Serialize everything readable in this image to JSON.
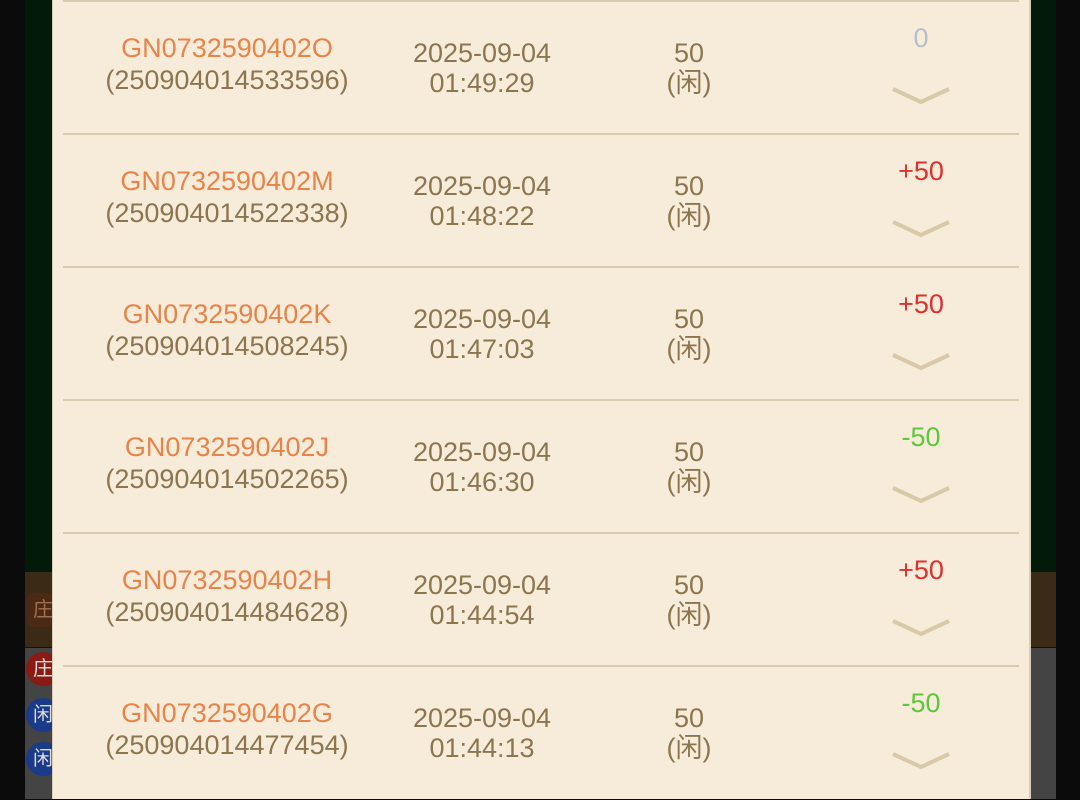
{
  "background": {
    "badges": [
      "庄",
      "庄",
      "闲",
      "闲"
    ]
  },
  "records": [
    {
      "code": "GN0732590402O",
      "serial": "(250904014533596)",
      "date": "2025-09-04",
      "time": "01:49:29",
      "amount": "50",
      "side": "(闲)",
      "result": "0",
      "result_color": "#b4c0cc"
    },
    {
      "code": "GN0732590402M",
      "serial": "(250904014522338)",
      "date": "2025-09-04",
      "time": "01:48:22",
      "amount": "50",
      "side": "(闲)",
      "result": "+50",
      "result_color": "#e0302e"
    },
    {
      "code": "GN0732590402K",
      "serial": "(250904014508245)",
      "date": "2025-09-04",
      "time": "01:47:03",
      "amount": "50",
      "side": "(闲)",
      "result": "+50",
      "result_color": "#e0302e"
    },
    {
      "code": "GN0732590402J",
      "serial": "(250904014502265)",
      "date": "2025-09-04",
      "time": "01:46:30",
      "amount": "50",
      "side": "(闲)",
      "result": "-50",
      "result_color": "#5cc83a"
    },
    {
      "code": "GN0732590402H",
      "serial": "(250904014484628)",
      "date": "2025-09-04",
      "time": "01:44:54",
      "amount": "50",
      "side": "(闲)",
      "result": "+50",
      "result_color": "#e0302e"
    },
    {
      "code": "GN0732590402G",
      "serial": "(250904014477454)",
      "date": "2025-09-04",
      "time": "01:44:13",
      "amount": "50",
      "side": "(闲)",
      "result": "-50",
      "result_color": "#5cc83a"
    }
  ]
}
